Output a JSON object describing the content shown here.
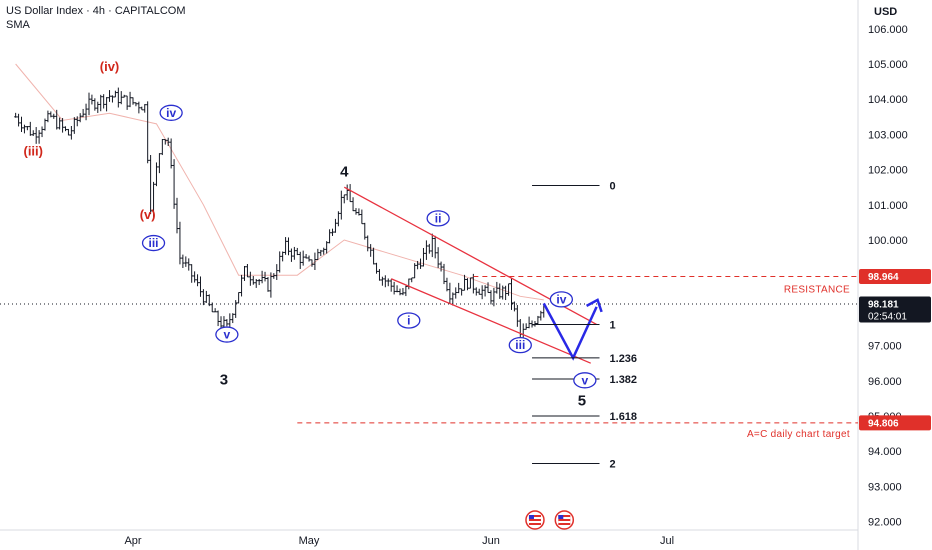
{
  "header": {
    "title": "US Dollar Index · 4h · CAPITALCOM",
    "indicator": "SMA"
  },
  "axis": {
    "currency": "USD",
    "y_ticks": [
      "106.000",
      "105.000",
      "104.000",
      "103.000",
      "102.000",
      "101.000",
      "100.000",
      "97.000",
      "96.000",
      "95.000",
      "94.000",
      "93.000",
      "92.000"
    ],
    "y_tick_values": [
      106,
      105,
      104,
      103,
      102,
      101,
      100,
      97,
      96,
      95,
      94,
      93,
      92
    ],
    "x_ticks": [
      {
        "label": "Apr",
        "day": 0
      },
      {
        "label": "May",
        "day": 30
      },
      {
        "label": "Jun",
        "day": 61
      },
      {
        "label": "Jul",
        "day": 91
      }
    ]
  },
  "price_tags": {
    "resistance": {
      "value": 98.964,
      "label": "98.964",
      "color": "#e0302a"
    },
    "current": {
      "value": 98.181,
      "label": "98.181",
      "countdown": "02:54:01",
      "color": "#131722"
    },
    "target": {
      "value": 94.806,
      "label": "94.806",
      "color": "#e0302a"
    }
  },
  "annotations": {
    "resistance_label": "RESISTANCE",
    "target_label": "A=C daily chart target",
    "waves_red": [
      {
        "label": "(iv)",
        "day": -4,
        "price": 104.8
      },
      {
        "label": "(iii)",
        "day": -17,
        "price": 102.4
      },
      {
        "label": "(v)",
        "day": 2.5,
        "price": 100.6
      }
    ],
    "waves_blue": [
      {
        "label": "iv",
        "day": 6.5,
        "price": 103.5
      },
      {
        "label": "iii",
        "day": 3.5,
        "price": 99.8
      },
      {
        "label": "v",
        "day": 16,
        "price": 97.2
      },
      {
        "label": "i",
        "day": 47,
        "price": 97.6
      },
      {
        "label": "ii",
        "day": 52,
        "price": 100.5
      },
      {
        "label": "iii",
        "day": 66,
        "price": 96.9
      },
      {
        "label": "iv",
        "day": 73,
        "price": 98.2
      },
      {
        "label": "v",
        "day": 77,
        "price": 95.9
      }
    ],
    "waves_black": [
      {
        "label": "3",
        "day": 15.5,
        "price": 95.9
      },
      {
        "label": "4",
        "day": 36,
        "price": 101.8
      },
      {
        "label": "5",
        "day": 76.5,
        "price": 95.3
      }
    ]
  },
  "fib_levels": [
    {
      "label": "0",
      "price": 101.55
    },
    {
      "label": "1",
      "price": 97.6
    },
    {
      "label": "1.236",
      "price": 96.65
    },
    {
      "label": "1.382",
      "price": 96.05
    },
    {
      "label": "1.618",
      "price": 95.0
    },
    {
      "label": "2",
      "price": 93.65
    }
  ],
  "chart_data": {
    "type": "candlestick",
    "title": "US Dollar Index · 4h · CAPITALCOM",
    "ylim": [
      92,
      106
    ],
    "price_path": [
      {
        "day": -20,
        "price": 103.5
      },
      {
        "day": -17,
        "price": 103.0
      },
      {
        "day": -14,
        "price": 103.5
      },
      {
        "day": -11,
        "price": 103.0
      },
      {
        "day": -8,
        "price": 103.8
      },
      {
        "day": -4,
        "price": 104.1
      },
      {
        "day": 0,
        "price": 103.9
      },
      {
        "day": 2,
        "price": 103.8
      },
      {
        "day": 3,
        "price": 101.0
      },
      {
        "day": 5,
        "price": 103.0
      },
      {
        "day": 6,
        "price": 102.8
      },
      {
        "day": 8,
        "price": 99.5
      },
      {
        "day": 10,
        "price": 99.0
      },
      {
        "day": 14,
        "price": 97.8
      },
      {
        "day": 16,
        "price": 97.5
      },
      {
        "day": 19,
        "price": 99.1
      },
      {
        "day": 23,
        "price": 98.7
      },
      {
        "day": 26,
        "price": 99.8
      },
      {
        "day": 30,
        "price": 99.3
      },
      {
        "day": 33,
        "price": 99.9
      },
      {
        "day": 36,
        "price": 101.4
      },
      {
        "day": 39,
        "price": 100.4
      },
      {
        "day": 42,
        "price": 99.0
      },
      {
        "day": 46,
        "price": 98.4
      },
      {
        "day": 48,
        "price": 99.2
      },
      {
        "day": 51,
        "price": 99.9
      },
      {
        "day": 54,
        "price": 98.5
      },
      {
        "day": 57,
        "price": 98.8
      },
      {
        "day": 61,
        "price": 98.4
      },
      {
        "day": 64,
        "price": 98.6
      },
      {
        "day": 66,
        "price": 97.3
      },
      {
        "day": 68,
        "price": 97.6
      },
      {
        "day": 70,
        "price": 98.2
      }
    ],
    "sma_path": [
      {
        "day": -20,
        "price": 105.0
      },
      {
        "day": -12,
        "price": 103.4
      },
      {
        "day": -4,
        "price": 103.6
      },
      {
        "day": 4,
        "price": 103.3
      },
      {
        "day": 12,
        "price": 101.0
      },
      {
        "day": 18,
        "price": 99.0
      },
      {
        "day": 28,
        "price": 99.0
      },
      {
        "day": 36,
        "price": 100.0
      },
      {
        "day": 44,
        "price": 99.6
      },
      {
        "day": 56,
        "price": 99.0
      },
      {
        "day": 66,
        "price": 98.4
      },
      {
        "day": 70,
        "price": 98.3
      }
    ],
    "channel_upper": [
      {
        "day": 36,
        "price": 101.5
      },
      {
        "day": 79,
        "price": 97.6
      }
    ],
    "channel_lower": [
      {
        "day": 44,
        "price": 98.9
      },
      {
        "day": 78,
        "price": 96.5
      }
    ],
    "projection": [
      {
        "day": 70,
        "price": 98.2
      },
      {
        "day": 75,
        "price": 96.65
      },
      {
        "day": 79,
        "price": 98.1
      }
    ]
  }
}
